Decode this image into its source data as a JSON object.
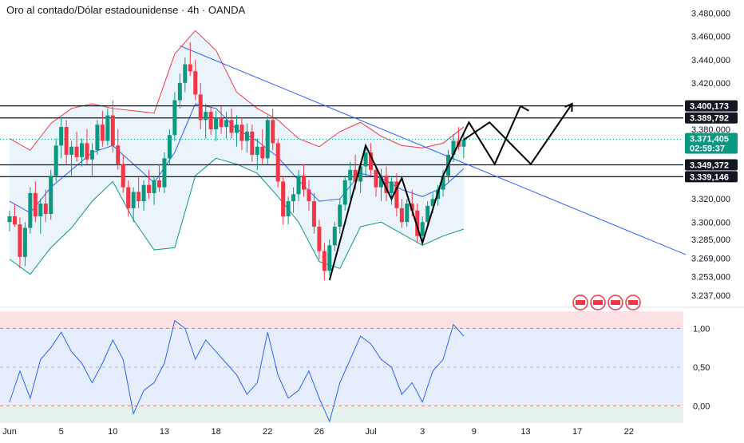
{
  "header": {
    "title": "Oro al contado/Dólar estadounidense · 4h · OANDA"
  },
  "colors": {
    "up": "#089981",
    "down": "#f23645",
    "bb_basis": "#2962ff",
    "bb_upper": "#f23645",
    "bb_lower": "#089981",
    "bb_fill": "#e3eefa",
    "trendline": "#2962ff",
    "level": "#131722",
    "current": "#089981",
    "osc_line": "#2962ff",
    "osc_top_zone": "#fbe1e3",
    "osc_mid_zone": "#e6edfd",
    "osc_bottom_zone": "#e4f3ec"
  },
  "chart_data": {
    "type": "candlestick",
    "symbol": "Oro al contado/Dólar estadounidense",
    "timeframe": "4h",
    "exchange": "OANDA",
    "price_axis": {
      "range": [
        3230,
        3488
      ],
      "ticks": [
        "3.480,000",
        "3.460,000",
        "3.440,000",
        "3.420,000",
        "3.380,000",
        "3.320,000",
        "3.300,000",
        "3.285,000",
        "3.269,000",
        "3.253,000",
        "3.237,000"
      ],
      "tick_values": [
        3480,
        3460,
        3440,
        3420,
        3380,
        3320,
        3300,
        3285,
        3269,
        3253,
        3237
      ]
    },
    "time_axis": {
      "labels": [
        "Jun",
        "5",
        "10",
        "13",
        "18",
        "22",
        "26",
        "Jul",
        "3",
        "9",
        "13",
        "17",
        "22"
      ],
      "label_values": [
        0,
        5,
        10,
        15,
        20,
        25,
        30,
        35,
        40,
        45,
        50,
        55,
        60
      ]
    },
    "horizontal_levels": [
      {
        "value": 3400.173,
        "label": "3.400,173"
      },
      {
        "value": 3389.792,
        "label": "3.389,792"
      },
      {
        "value": 3349.372,
        "label": "3.349,372"
      },
      {
        "value": 3339.146,
        "label": "3.339,146"
      }
    ],
    "current_price": {
      "value": 3371.405,
      "label": "3.371,405",
      "countdown": "02:59:37"
    },
    "trendline": {
      "from": {
        "t": 16.5,
        "p": 3452
      },
      "to": {
        "t": 65.5,
        "p": 3272
      }
    },
    "candles_ohlc": [
      [
        0.0,
        3300,
        3310,
        3292,
        3305
      ],
      [
        0.5,
        3305,
        3315,
        3296,
        3298
      ],
      [
        1.0,
        3298,
        3304,
        3260,
        3270
      ],
      [
        1.5,
        3270,
        3300,
        3262,
        3295
      ],
      [
        2.0,
        3295,
        3330,
        3290,
        3325
      ],
      [
        2.5,
        3325,
        3335,
        3300,
        3305
      ],
      [
        3.0,
        3305,
        3320,
        3290,
        3316
      ],
      [
        3.5,
        3316,
        3328,
        3300,
        3307
      ],
      [
        4.0,
        3307,
        3345,
        3302,
        3340
      ],
      [
        4.5,
        3340,
        3372,
        3335,
        3366
      ],
      [
        5.0,
        3366,
        3390,
        3355,
        3382
      ],
      [
        5.5,
        3382,
        3388,
        3350,
        3358
      ],
      [
        6.0,
        3358,
        3370,
        3340,
        3365
      ],
      [
        6.5,
        3365,
        3378,
        3352,
        3356
      ],
      [
        7.0,
        3356,
        3372,
        3348,
        3368
      ],
      [
        7.5,
        3368,
        3380,
        3350,
        3354
      ],
      [
        8.0,
        3354,
        3368,
        3340,
        3362
      ],
      [
        8.5,
        3362,
        3388,
        3358,
        3384
      ],
      [
        9.0,
        3384,
        3396,
        3365,
        3370
      ],
      [
        9.5,
        3370,
        3398,
        3366,
        3392
      ],
      [
        10.0,
        3392,
        3405,
        3360,
        3366
      ],
      [
        10.5,
        3366,
        3380,
        3345,
        3350
      ],
      [
        11.0,
        3350,
        3358,
        3325,
        3330
      ],
      [
        11.5,
        3330,
        3336,
        3305,
        3312
      ],
      [
        12.0,
        3312,
        3330,
        3300,
        3326
      ],
      [
        12.5,
        3326,
        3340,
        3312,
        3318
      ],
      [
        13.0,
        3318,
        3336,
        3310,
        3332
      ],
      [
        13.5,
        3332,
        3345,
        3320,
        3325
      ],
      [
        14.0,
        3325,
        3340,
        3315,
        3336
      ],
      [
        14.5,
        3336,
        3350,
        3326,
        3330
      ],
      [
        15.0,
        3330,
        3360,
        3325,
        3355
      ],
      [
        15.5,
        3355,
        3380,
        3350,
        3375
      ],
      [
        16.0,
        3375,
        3412,
        3370,
        3405
      ],
      [
        16.5,
        3405,
        3428,
        3398,
        3420
      ],
      [
        17.0,
        3420,
        3442,
        3412,
        3436
      ],
      [
        17.5,
        3436,
        3455,
        3426,
        3430
      ],
      [
        18.0,
        3430,
        3440,
        3405,
        3410
      ],
      [
        18.5,
        3410,
        3420,
        3380,
        3388
      ],
      [
        19.0,
        3388,
        3402,
        3372,
        3395
      ],
      [
        19.5,
        3395,
        3400,
        3375,
        3380
      ],
      [
        20.0,
        3380,
        3396,
        3370,
        3390
      ],
      [
        20.5,
        3390,
        3400,
        3376,
        3382
      ],
      [
        21.0,
        3382,
        3395,
        3372,
        3388
      ],
      [
        21.5,
        3388,
        3398,
        3372,
        3377
      ],
      [
        22.0,
        3377,
        3392,
        3365,
        3384
      ],
      [
        22.5,
        3384,
        3390,
        3362,
        3370
      ],
      [
        23.0,
        3370,
        3385,
        3360,
        3378
      ],
      [
        23.5,
        3378,
        3384,
        3352,
        3358
      ],
      [
        24.0,
        3358,
        3372,
        3345,
        3365
      ],
      [
        24.5,
        3365,
        3380,
        3350,
        3355
      ],
      [
        25.0,
        3355,
        3392,
        3350,
        3388
      ],
      [
        25.5,
        3388,
        3398,
        3362,
        3368
      ],
      [
        26.0,
        3368,
        3372,
        3330,
        3335
      ],
      [
        26.5,
        3335,
        3340,
        3298,
        3305
      ],
      [
        27.0,
        3305,
        3322,
        3298,
        3318
      ],
      [
        27.5,
        3318,
        3330,
        3308,
        3324
      ],
      [
        28.0,
        3324,
        3345,
        3318,
        3340
      ],
      [
        28.5,
        3340,
        3350,
        3322,
        3328
      ],
      [
        29.0,
        3328,
        3336,
        3310,
        3318
      ],
      [
        29.5,
        3318,
        3325,
        3290,
        3296
      ],
      [
        30.0,
        3296,
        3302,
        3268,
        3275
      ],
      [
        30.5,
        3275,
        3282,
        3250,
        3258
      ],
      [
        31.0,
        3258,
        3285,
        3254,
        3280
      ],
      [
        31.5,
        3280,
        3300,
        3275,
        3296
      ],
      [
        32.0,
        3296,
        3320,
        3290,
        3315
      ],
      [
        32.5,
        3315,
        3340,
        3310,
        3336
      ],
      [
        33.0,
        3336,
        3352,
        3320,
        3345
      ],
      [
        33.5,
        3345,
        3358,
        3328,
        3335
      ],
      [
        34.0,
        3335,
        3352,
        3325,
        3348
      ],
      [
        34.5,
        3348,
        3366,
        3340,
        3360
      ],
      [
        35.0,
        3360,
        3368,
        3340,
        3345
      ],
      [
        35.5,
        3345,
        3350,
        3322,
        3330
      ],
      [
        36.0,
        3330,
        3346,
        3318,
        3340
      ],
      [
        36.5,
        3340,
        3348,
        3318,
        3325
      ],
      [
        37.0,
        3325,
        3340,
        3315,
        3335
      ],
      [
        37.5,
        3335,
        3342,
        3305,
        3312
      ],
      [
        38.0,
        3312,
        3320,
        3295,
        3300
      ],
      [
        38.5,
        3300,
        3320,
        3296,
        3316
      ],
      [
        39.0,
        3316,
        3328,
        3305,
        3310
      ],
      [
        39.5,
        3310,
        3316,
        3282,
        3288
      ],
      [
        40.0,
        3288,
        3305,
        3282,
        3300
      ],
      [
        40.5,
        3300,
        3318,
        3296,
        3314
      ],
      [
        41.0,
        3314,
        3325,
        3308,
        3320
      ],
      [
        41.5,
        3320,
        3332,
        3314,
        3328
      ],
      [
        42.0,
        3328,
        3345,
        3322,
        3340
      ],
      [
        42.5,
        3340,
        3362,
        3335,
        3358
      ],
      [
        43.0,
        3358,
        3376,
        3352,
        3370
      ],
      [
        43.5,
        3370,
        3382,
        3362,
        3365
      ],
      [
        44.0,
        3365,
        3378,
        3355,
        3371
      ]
    ],
    "bollinger_bands": {
      "t": [
        0,
        2,
        4,
        6,
        8,
        10,
        12,
        14,
        16,
        18,
        20,
        22,
        24,
        26,
        28,
        30,
        32,
        34,
        36,
        38,
        40,
        42,
        44
      ],
      "upper": [
        3372,
        3362,
        3385,
        3398,
        3402,
        3398,
        3396,
        3394,
        3445,
        3465,
        3448,
        3412,
        3398,
        3388,
        3372,
        3365,
        3378,
        3386,
        3374,
        3366,
        3364,
        3368,
        3382
      ],
      "basis": [
        3318,
        3308,
        3330,
        3345,
        3360,
        3366,
        3350,
        3334,
        3360,
        3402,
        3398,
        3380,
        3370,
        3356,
        3336,
        3318,
        3320,
        3342,
        3338,
        3328,
        3322,
        3330,
        3346
      ],
      "lower": [
        3268,
        3255,
        3278,
        3295,
        3318,
        3335,
        3302,
        3276,
        3278,
        3340,
        3355,
        3350,
        3342,
        3322,
        3300,
        3266,
        3260,
        3296,
        3300,
        3290,
        3280,
        3288,
        3294
      ]
    },
    "pattern_zigzag": [
      {
        "t": 31.0,
        "p": 3250
      },
      {
        "t": 34.5,
        "p": 3366
      },
      {
        "t": 37.0,
        "p": 3320
      },
      {
        "t": 38.0,
        "p": 3338
      },
      {
        "t": 40.0,
        "p": 3282
      },
      {
        "t": 42.0,
        "p": 3340
      },
      {
        "t": 44.5,
        "p": 3386
      },
      {
        "t": 47.0,
        "p": 3350
      },
      {
        "t": 49.5,
        "p": 3400
      },
      {
        "t": 50.3,
        "p": 3396
      }
    ],
    "oscillator": {
      "range": [
        -0.22,
        1.22
      ],
      "ticks": [
        "1,00",
        "0,50",
        "0,00"
      ],
      "tick_values": [
        1.0,
        0.5,
        0.0
      ],
      "t": [
        0,
        1,
        2,
        3,
        4,
        5,
        6,
        7,
        8,
        9,
        10,
        11,
        12,
        13,
        14,
        15,
        16,
        17,
        18,
        19,
        20,
        21,
        22,
        23,
        24,
        25,
        26,
        27,
        28,
        29,
        30,
        31,
        32,
        33,
        34,
        35,
        36,
        37,
        38,
        39,
        40,
        41,
        42,
        43,
        44
      ],
      "values": [
        0.05,
        0.45,
        0.1,
        0.6,
        0.75,
        0.95,
        0.7,
        0.55,
        0.3,
        0.55,
        0.85,
        0.6,
        -0.1,
        0.2,
        0.3,
        0.55,
        1.1,
        1.0,
        0.6,
        0.85,
        0.7,
        0.55,
        0.4,
        0.15,
        0.3,
        0.95,
        0.4,
        0.1,
        0.2,
        0.45,
        0.1,
        -0.2,
        0.3,
        0.6,
        0.9,
        0.8,
        0.6,
        0.5,
        0.15,
        0.3,
        0.05,
        0.45,
        0.6,
        1.05,
        0.9
      ]
    },
    "projection_path": [
      {
        "t": 44.0,
        "p": 3371
      },
      {
        "t": 46.5,
        "p": 3386
      },
      {
        "t": 50.5,
        "p": 3350
      },
      {
        "t": 54.5,
        "p": 3402
      }
    ]
  }
}
